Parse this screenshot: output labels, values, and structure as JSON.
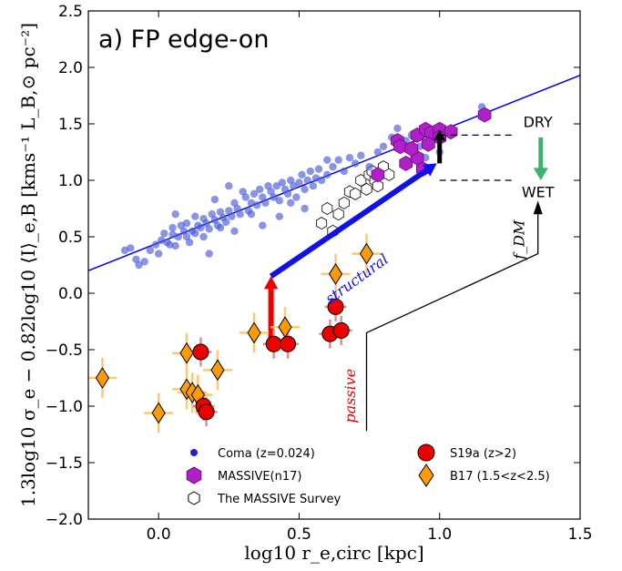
{
  "chart_data": {
    "type": "scatter",
    "title": "a) FP edge-on",
    "xlabel": "log10 r_e,circ [kpc]",
    "ylabel": "1.3log10 σ_e − 0.82log10 ⟨I⟩_e,B [kms⁻¹ L_B,⊙ pc⁻²]",
    "xlim": [
      -0.25,
      1.5
    ],
    "ylim": [
      -2.0,
      2.5
    ],
    "xticks": [
      "0.0",
      "0.5",
      "1.0",
      "1.5"
    ],
    "yticks": [
      "−2.0",
      "−1.5",
      "−1.0",
      "−0.5",
      "0.0",
      "0.5",
      "1.0",
      "1.5",
      "2.0",
      "2.5"
    ],
    "fit_line": {
      "x": [
        -0.25,
        1.5
      ],
      "y": [
        0.2,
        1.93
      ],
      "color": "#0000ee"
    },
    "series": [
      {
        "name": "Coma (z=0.024)",
        "marker": "circle",
        "color": "#4a5ad8",
        "points": [
          [
            -0.12,
            0.38
          ],
          [
            -0.1,
            0.4
          ],
          [
            -0.08,
            0.3
          ],
          [
            -0.07,
            0.25
          ],
          [
            -0.05,
            0.28
          ],
          [
            -0.03,
            0.38
          ],
          [
            -0.01,
            0.43
          ],
          [
            0.0,
            0.35
          ],
          [
            0.01,
            0.47
          ],
          [
            0.02,
            0.53
          ],
          [
            0.03,
            0.45
          ],
          [
            0.04,
            0.43
          ],
          [
            0.05,
            0.52
          ],
          [
            0.05,
            0.58
          ],
          [
            0.06,
            0.42
          ],
          [
            0.07,
            0.5
          ],
          [
            0.08,
            0.6
          ],
          [
            0.09,
            0.55
          ],
          [
            0.1,
            0.5
          ],
          [
            0.1,
            0.62
          ],
          [
            0.11,
            0.45
          ],
          [
            0.12,
            0.55
          ],
          [
            0.13,
            0.53
          ],
          [
            0.13,
            0.68
          ],
          [
            0.14,
            0.6
          ],
          [
            0.15,
            0.58
          ],
          [
            0.16,
            0.5
          ],
          [
            0.16,
            0.66
          ],
          [
            0.17,
            0.62
          ],
          [
            0.18,
            0.57
          ],
          [
            0.19,
            0.7
          ],
          [
            0.2,
            0.65
          ],
          [
            0.21,
            0.6
          ],
          [
            0.22,
            0.72
          ],
          [
            0.23,
            0.67
          ],
          [
            0.24,
            0.63
          ],
          [
            0.25,
            0.73
          ],
          [
            0.26,
            0.68
          ],
          [
            0.27,
            0.8
          ],
          [
            0.28,
            0.75
          ],
          [
            0.29,
            0.7
          ],
          [
            0.3,
            0.9
          ],
          [
            0.31,
            0.85
          ],
          [
            0.32,
            0.73
          ],
          [
            0.33,
            0.8
          ],
          [
            0.34,
            0.88
          ],
          [
            0.35,
            0.78
          ],
          [
            0.36,
            0.92
          ],
          [
            0.37,
            0.85
          ],
          [
            0.38,
            0.8
          ],
          [
            0.39,
            0.95
          ],
          [
            0.4,
            0.9
          ],
          [
            0.41,
            0.85
          ],
          [
            0.42,
            0.95
          ],
          [
            0.43,
            0.82
          ],
          [
            0.44,
            0.98
          ],
          [
            0.45,
            0.92
          ],
          [
            0.46,
            0.88
          ],
          [
            0.47,
            1.0
          ],
          [
            0.48,
            0.95
          ],
          [
            0.49,
            0.85
          ],
          [
            0.5,
            0.98
          ],
          [
            0.51,
            1.05
          ],
          [
            0.52,
            0.92
          ],
          [
            0.53,
            1.0
          ],
          [
            0.54,
            1.08
          ],
          [
            0.55,
            0.95
          ],
          [
            0.56,
            1.02
          ],
          [
            0.57,
            1.1
          ],
          [
            0.58,
            1.0
          ],
          [
            0.6,
            1.05
          ],
          [
            0.62,
            1.12
          ],
          [
            0.64,
            1.18
          ],
          [
            0.66,
            1.08
          ],
          [
            0.68,
            1.2
          ],
          [
            0.7,
            1.15
          ],
          [
            0.72,
            1.22
          ],
          [
            0.75,
            1.12
          ],
          [
            0.78,
            1.25
          ],
          [
            0.8,
            1.3
          ],
          [
            0.83,
            1.38
          ],
          [
            0.85,
            1.46
          ],
          [
            0.88,
            1.35
          ],
          [
            0.9,
            1.4
          ],
          [
            0.93,
            1.3
          ],
          [
            0.95,
            1.2
          ],
          [
            1.0,
            1.25
          ],
          [
            1.15,
            1.65
          ],
          [
            0.22,
            0.58
          ],
          [
            0.18,
            0.35
          ],
          [
            0.25,
            0.95
          ],
          [
            0.33,
            0.7
          ],
          [
            0.43,
            0.68
          ],
          [
            0.52,
            0.75
          ],
          [
            0.6,
            1.18
          ],
          [
            0.06,
            0.7
          ],
          [
            0.2,
            0.83
          ],
          [
            0.37,
            0.6
          ],
          [
            0.47,
            0.8
          ],
          [
            0.27,
            0.55
          ]
        ]
      },
      {
        "name": "MASSIVE(n17)",
        "marker": "hexagon",
        "color": "#b020c8",
        "points": [
          [
            0.85,
            1.35
          ],
          [
            0.86,
            1.3
          ],
          [
            0.92,
            1.4
          ],
          [
            0.95,
            1.45
          ],
          [
            0.97,
            1.42
          ],
          [
            1.0,
            1.45
          ],
          [
            1.0,
            1.38
          ],
          [
            1.04,
            1.43
          ],
          [
            1.16,
            1.58
          ],
          [
            0.96,
            1.32
          ],
          [
            0.88,
            1.15
          ],
          [
            0.92,
            1.2
          ],
          [
            0.78,
            1.05
          ],
          [
            0.94,
            1.1
          ],
          [
            0.9,
            1.28
          ]
        ]
      },
      {
        "name": "The MASSIVE Survey",
        "marker": "hexagon-open",
        "color": "#000000",
        "points": [
          [
            0.62,
            0.55
          ],
          [
            0.64,
            0.7
          ],
          [
            0.66,
            0.8
          ],
          [
            0.68,
            0.9
          ],
          [
            0.7,
            0.88
          ],
          [
            0.72,
            1.0
          ],
          [
            0.74,
            0.92
          ],
          [
            0.75,
            1.05
          ],
          [
            0.76,
            1.08
          ],
          [
            0.77,
            1.0
          ],
          [
            0.78,
            0.95
          ],
          [
            0.8,
            1.12
          ],
          [
            0.82,
            1.05
          ],
          [
            0.6,
            0.75
          ],
          [
            0.58,
            0.62
          ]
        ]
      },
      {
        "name": "S19a (z>2)",
        "marker": "circle-large",
        "color": "#ee0000",
        "points": [
          [
            0.15,
            -0.52
          ],
          [
            0.16,
            -1.0
          ],
          [
            0.17,
            -1.05
          ],
          [
            0.41,
            -0.45
          ],
          [
            0.46,
            -0.45
          ],
          [
            0.63,
            -0.12
          ],
          [
            0.61,
            -0.36
          ],
          [
            0.65,
            -0.33
          ]
        ]
      },
      {
        "name": "B17 (1.5<z<2.5)",
        "marker": "diamond",
        "color": "#ff9a00",
        "points": [
          [
            -0.2,
            -0.75
          ],
          [
            0.0,
            -1.06
          ],
          [
            0.1,
            -0.53
          ],
          [
            0.1,
            -0.85
          ],
          [
            0.12,
            -0.88
          ],
          [
            0.14,
            -0.9
          ],
          [
            0.21,
            -0.68
          ],
          [
            0.34,
            -0.35
          ],
          [
            0.45,
            -0.3
          ],
          [
            0.63,
            0.17
          ],
          [
            0.74,
            0.35
          ]
        ]
      }
    ],
    "legend": {
      "placement": "bottom-center"
    },
    "annotations": {
      "dry": "DRY",
      "wet": "WET",
      "fdm": "f_DM",
      "structural": "structural",
      "passive": "passive"
    }
  }
}
